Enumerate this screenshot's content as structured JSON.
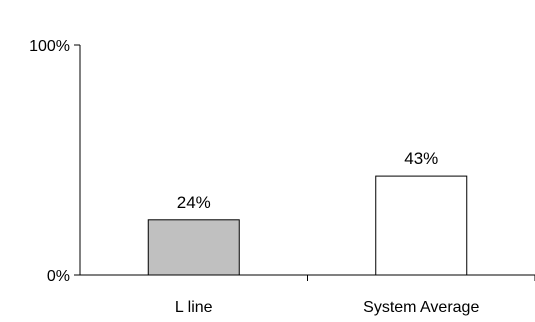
{
  "chart_data": {
    "type": "bar",
    "categories": [
      "L line",
      "System Average"
    ],
    "values": [
      24,
      43
    ],
    "data_labels": [
      "24%",
      "43%"
    ],
    "bar_colors": [
      "#c0c0c0",
      "#ffffff"
    ],
    "ylim": [
      0,
      100
    ],
    "yticks": [
      {
        "value": 0,
        "label": "0%"
      },
      {
        "value": 100,
        "label": "100%"
      }
    ],
    "title": "",
    "xlabel": "",
    "ylabel": "",
    "grid": false,
    "legend": "none"
  }
}
